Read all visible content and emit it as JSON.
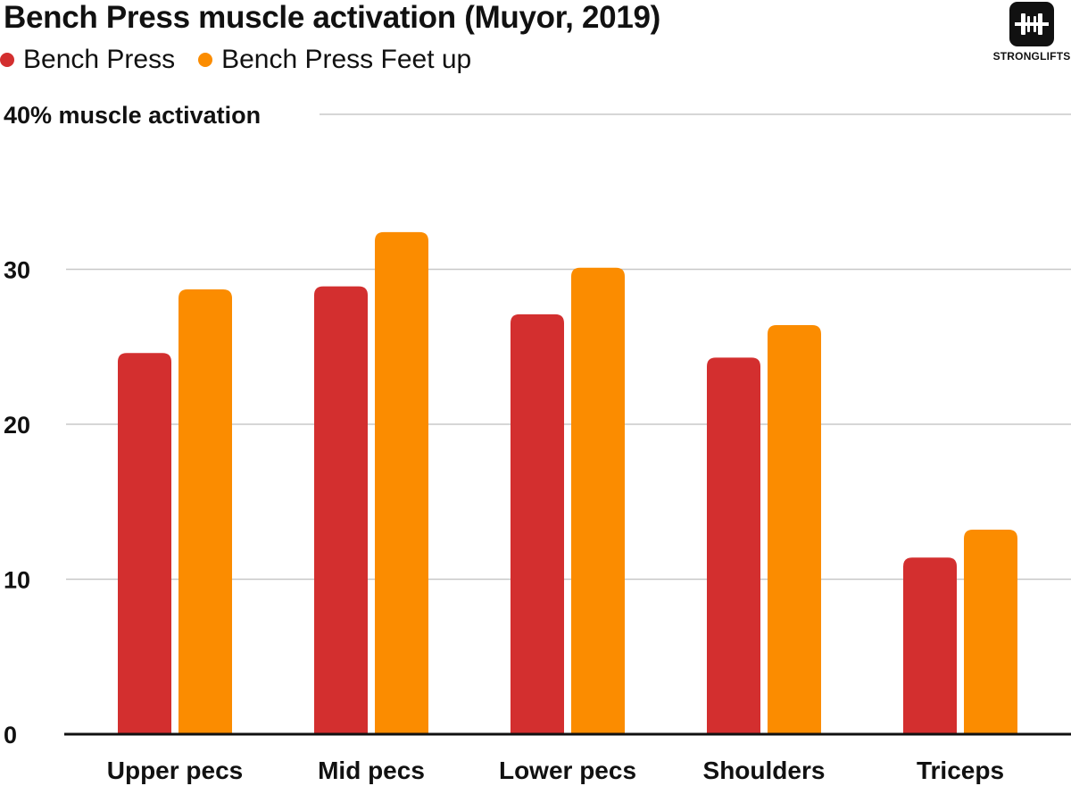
{
  "chart_data": {
    "type": "bar",
    "title": "Bench Press muscle activation (Muyor, 2019)",
    "ylabel": "% muscle activation",
    "xlabel": "",
    "categories": [
      "Upper pecs",
      "Mid pecs",
      "Lower pecs",
      "Shoulders",
      "Triceps"
    ],
    "series": [
      {
        "name": "Bench Press",
        "color": "#d32f2f",
        "values": [
          24.6,
          28.9,
          27.1,
          24.3,
          11.4
        ]
      },
      {
        "name": "Bench Press Feet up",
        "color": "#fb8c00",
        "values": [
          28.7,
          32.4,
          30.1,
          26.4,
          13.2
        ]
      }
    ],
    "ylim": [
      0,
      40
    ],
    "yticks": [
      0,
      10,
      20,
      30,
      40
    ],
    "top_tick_label": "40% muscle activation",
    "grid": true,
    "legend_position": "top-left"
  },
  "brand": {
    "name": "STRONGLIFTS",
    "icon": "barbell-logo-icon"
  }
}
